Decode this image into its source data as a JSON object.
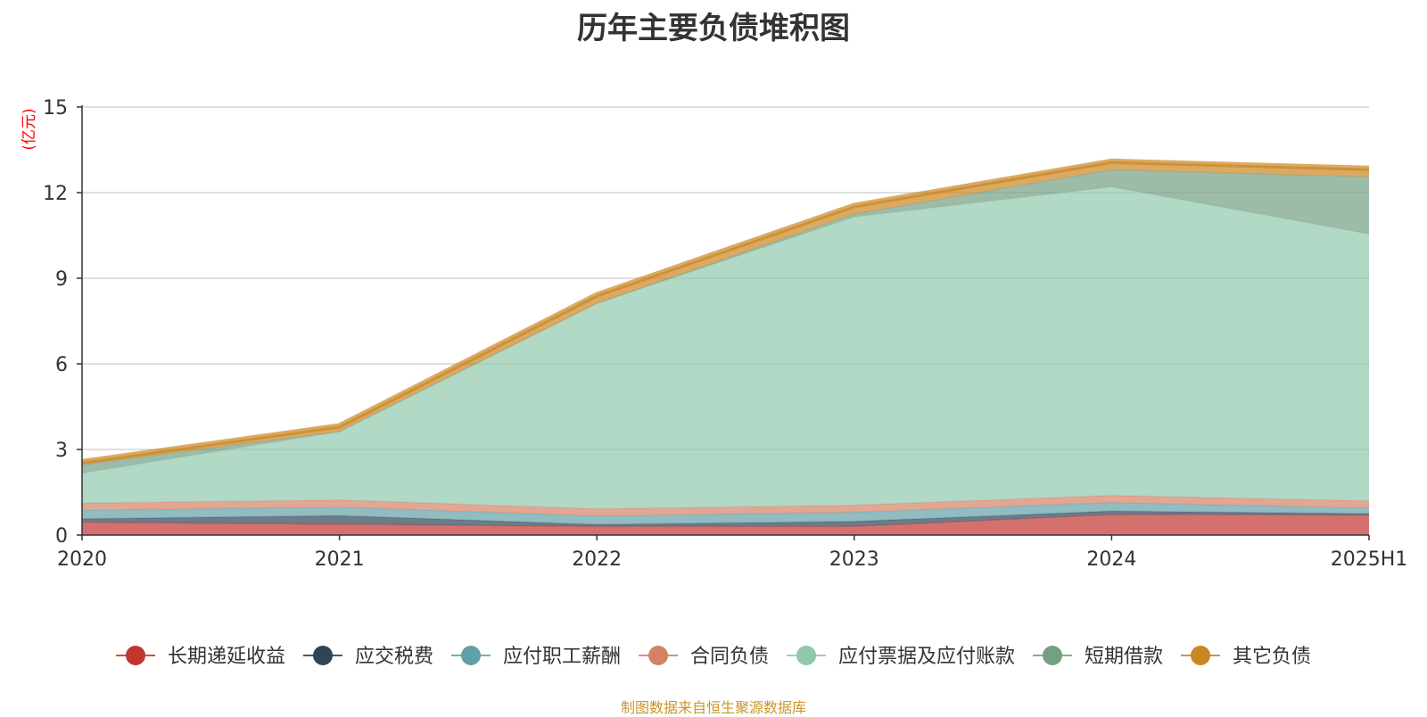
{
  "chart_data": {
    "type": "area",
    "title": "历年主要负债堆积图",
    "ylabel": "(亿元)",
    "xlabel": "",
    "categories": [
      "2020",
      "2021",
      "2022",
      "2023",
      "2024",
      "2025H1"
    ],
    "ylim": [
      0,
      15
    ],
    "yticks": [
      "0",
      "3",
      "6",
      "9",
      "12",
      "15"
    ],
    "stacked": true,
    "grid": true,
    "legend_position": "bottom",
    "series": [
      {
        "name": "长期递延收益",
        "color": "#c23531",
        "values": [
          0.45,
          0.38,
          0.3,
          0.3,
          0.72,
          0.7
        ]
      },
      {
        "name": "应交税费",
        "color": "#2f4554",
        "values": [
          0.12,
          0.3,
          0.07,
          0.18,
          0.12,
          0.05
        ]
      },
      {
        "name": "应付职工薪酬",
        "color": "#61a0a8",
        "values": [
          0.3,
          0.3,
          0.3,
          0.32,
          0.3,
          0.2
        ]
      },
      {
        "name": "合同负债",
        "color": "#d48265",
        "values": [
          0.25,
          0.25,
          0.25,
          0.25,
          0.25,
          0.25
        ]
      },
      {
        "name": "应付票据及应付账款",
        "color": "#91c7ae",
        "values": [
          1.05,
          2.4,
          7.2,
          10.1,
          10.81,
          9.35
        ]
      },
      {
        "name": "短期借款",
        "color": "#749f83",
        "values": [
          0.3,
          0.0,
          0.0,
          0.1,
          0.6,
          2.0
        ]
      },
      {
        "name": "其它负债",
        "color": "#ca8622",
        "values": [
          0.1,
          0.2,
          0.3,
          0.3,
          0.3,
          0.3
        ]
      }
    ]
  },
  "source_note": "制图数据来自恒生聚源数据库"
}
